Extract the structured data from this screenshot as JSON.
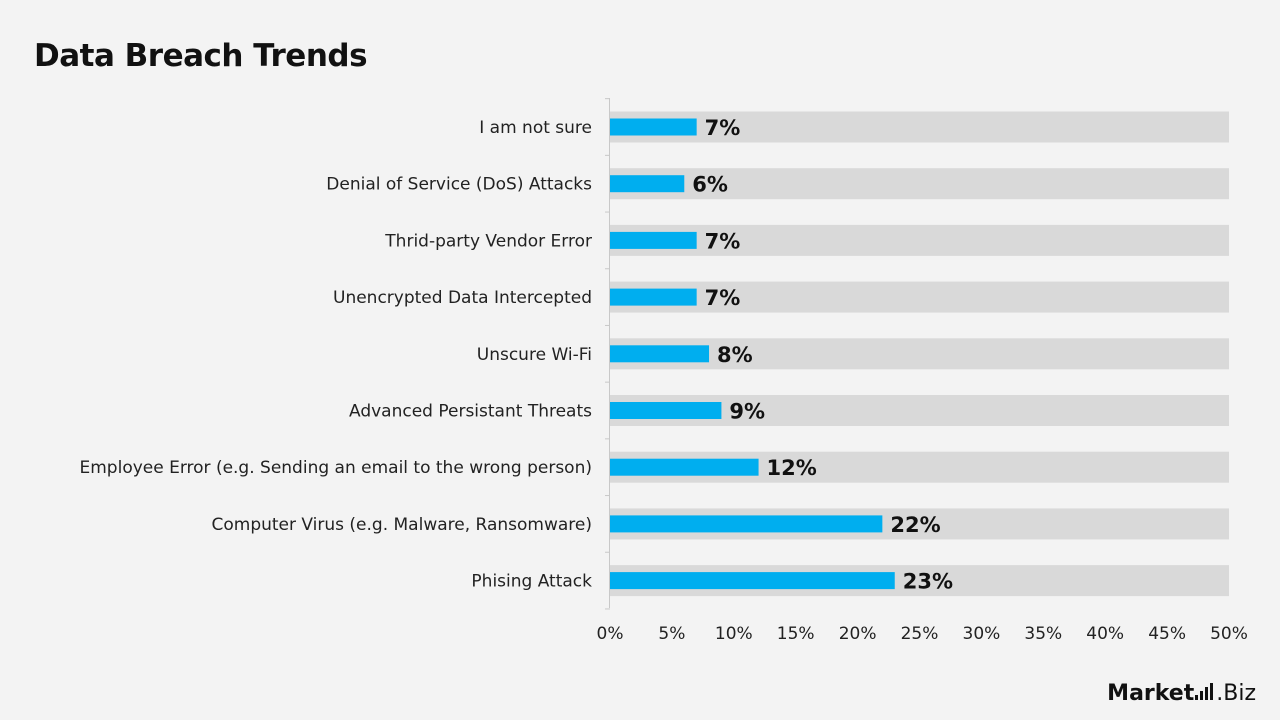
{
  "title": "Data Breach Trends",
  "chart_data": {
    "type": "bar",
    "orientation": "horizontal",
    "title": "Data Breach Trends",
    "categories": [
      "I am not sure",
      "Denial of Service (DoS) Attacks",
      "Thrid-party Vendor Error",
      "Unencrypted Data Intercepted",
      "Unscure Wi-Fi",
      "Advanced Persistant Threats",
      "Employee Error (e.g. Sending an email to the wrong person)",
      "Computer Virus (e.g. Malware, Ransomware)",
      "Phising Attack"
    ],
    "values": [
      7,
      6,
      7,
      7,
      8,
      9,
      12,
      22,
      23
    ],
    "data_labels": [
      "7%",
      "6%",
      "7%",
      "7%",
      "8%",
      "9%",
      "12%",
      "22%",
      "23%"
    ],
    "xlim": [
      0,
      50
    ],
    "x_ticks": [
      "0%",
      "5%",
      "10%",
      "15%",
      "20%",
      "25%",
      "30%",
      "35%",
      "40%",
      "45%",
      "50%"
    ],
    "xlabel": "",
    "ylabel": "",
    "grid": false,
    "legend": "none",
    "colors": {
      "bar": "#00aeef",
      "track": "#d9d9d9",
      "background": "#f3f3f3"
    }
  },
  "logo": {
    "word1": "Market",
    "word2": ".Biz"
  }
}
